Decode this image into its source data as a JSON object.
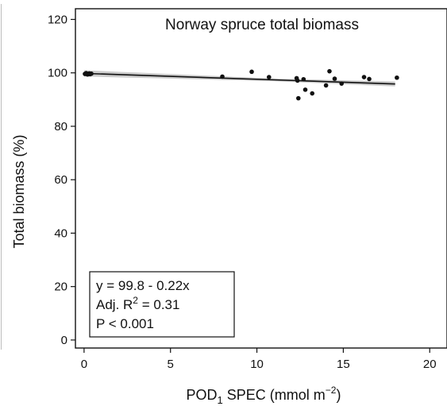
{
  "chart_data": {
    "type": "scatter",
    "title": "Norway spruce total biomass",
    "xlabel_main": "POD",
    "xlabel_sub": "1",
    "xlabel_rest": " SPEC (mmol m",
    "xlabel_sup": "−2",
    "xlabel_close": ")",
    "ylabel": "Total biomass (%)",
    "xlim": [
      -0.5,
      21
    ],
    "ylim": [
      -3,
      124
    ],
    "xticks": [
      0,
      5,
      10,
      15,
      20
    ],
    "yticks": [
      0,
      20,
      40,
      60,
      80,
      100,
      120
    ],
    "grid": false,
    "points": [
      {
        "x": 0.05,
        "y": 99.6
      },
      {
        "x": 0.12,
        "y": 99.9
      },
      {
        "x": 0.2,
        "y": 99.4
      },
      {
        "x": 0.3,
        "y": 99.8
      },
      {
        "x": 0.35,
        "y": 99.5
      },
      {
        "x": 0.42,
        "y": 99.7
      },
      {
        "x": 8.0,
        "y": 98.6
      },
      {
        "x": 9.7,
        "y": 100.4
      },
      {
        "x": 10.7,
        "y": 98.4
      },
      {
        "x": 12.3,
        "y": 98.0
      },
      {
        "x": 12.35,
        "y": 97.1
      },
      {
        "x": 12.4,
        "y": 90.5
      },
      {
        "x": 12.7,
        "y": 97.6
      },
      {
        "x": 12.8,
        "y": 93.7
      },
      {
        "x": 13.2,
        "y": 92.3
      },
      {
        "x": 14.0,
        "y": 95.3
      },
      {
        "x": 14.2,
        "y": 100.6
      },
      {
        "x": 14.5,
        "y": 97.8
      },
      {
        "x": 14.9,
        "y": 96.0
      },
      {
        "x": 16.2,
        "y": 98.4
      },
      {
        "x": 16.5,
        "y": 97.7
      },
      {
        "x": 18.1,
        "y": 98.2
      }
    ],
    "regression": {
      "intercept": 99.8,
      "slope": -0.22,
      "x_range": [
        0,
        18
      ]
    },
    "stats": {
      "equation": "y = 99.8 - 0.22x",
      "adj_r2_label": "Adj. R",
      "adj_r2_sup": "2",
      "adj_r2_value": " = 0.31",
      "p_value": "P < 0.001"
    },
    "colors": {
      "points": "#111111",
      "line": "#111111",
      "band": "#cccccc"
    }
  }
}
